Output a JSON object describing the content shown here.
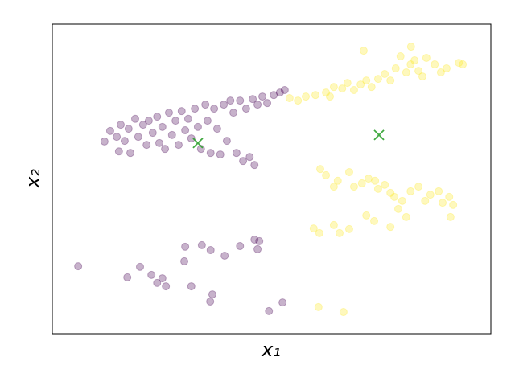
{
  "chart_data": {
    "type": "scatter",
    "xlabel": "x₁",
    "ylabel": "x₂",
    "xlim": [
      0,
      100
    ],
    "ylim": [
      0,
      100
    ],
    "series": [
      {
        "color": "#440154",
        "alpha": 0.3,
        "marker": "o",
        "x": [
          5.9,
          17.1,
          20.0,
          22.6,
          23.9,
          25.1,
          25.9,
          30.3,
          30.1,
          31.7,
          34.1,
          36.1,
          36.5,
          36.0,
          39.3,
          42.8,
          46.1,
          47.2,
          46.8,
          49.4,
          52.5,
          11.9,
          13.2,
          14.7,
          15.2,
          15.6,
          16.5,
          17.4,
          17.8,
          18.9,
          19.6,
          20.7,
          21.5,
          22.0,
          22.9,
          23.9,
          24.4,
          25.1,
          25.7,
          26.6,
          27.3,
          28.1,
          28.8,
          29.5,
          30.3,
          31.0,
          31.7,
          32.5,
          33.2,
          33.9,
          34.9,
          35.4,
          36.1,
          36.9,
          37.6,
          38.3,
          39.1,
          39.8,
          40.6,
          41.3,
          42.0,
          42.8,
          43.5,
          44.2,
          45.0,
          45.7,
          46.1,
          46.8,
          47.9,
          49.0,
          50.5,
          51.9,
          53.0
        ],
        "values": [
          21.8,
          18.2,
          21.6,
          19.0,
          16.4,
          17.9,
          15.3,
          28.1,
          23.4,
          15.3,
          28.6,
          27.0,
          12.7,
          10.4,
          25.2,
          28.3,
          30.4,
          29.9,
          27.3,
          7.3,
          10.1,
          62.1,
          65.5,
          63.6,
          58.9,
          67.5,
          62.3,
          66.2,
          58.4,
          69.4,
          63.6,
          67.5,
          61.0,
          68.8,
          64.9,
          70.1,
          61.6,
          66.8,
          59.7,
          71.4,
          64.2,
          68.8,
          61.0,
          71.9,
          65.7,
          69.4,
          63.1,
          72.7,
          66.8,
          59.7,
          74.0,
          68.8,
          58.4,
          72.7,
          66.2,
          57.9,
          74.0,
          62.3,
          75.3,
          71.4,
          58.4,
          75.3,
          55.8,
          72.7,
          57.1,
          75.8,
          54.5,
          74.0,
          76.6,
          74.5,
          77.1,
          77.9,
          78.7
        ]
      },
      {
        "color": "#fde725",
        "alpha": 0.3,
        "marker": "o",
        "x": [
          54.1,
          56.0,
          57.8,
          60.0,
          62.4,
          63.3,
          64.2,
          66.1,
          67.3,
          68.8,
          70.3,
          71.6,
          72.8,
          74.3,
          75.8,
          77.1,
          78.3,
          79.4,
          80.7,
          81.7,
          82.6,
          83.5,
          84.4,
          85.3,
          87.2,
          88.6,
          89.9,
          92.7,
          93.6,
          71.0,
          81.8,
          61.1,
          62.4,
          64.2,
          65.1,
          67.7,
          68.8,
          70.6,
          72.1,
          73.6,
          74.3,
          75.8,
          77.1,
          78.0,
          78.9,
          79.8,
          80.7,
          81.7,
          83.5,
          85.0,
          86.2,
          88.1,
          89.0,
          90.5,
          90.8,
          91.4,
          71.6,
          73.4,
          77.1,
          64.2,
          59.6,
          60.9,
          65.5,
          67.7,
          60.7,
          66.4
        ],
        "values": [
          76.1,
          75.3,
          76.6,
          77.1,
          77.9,
          76.6,
          79.7,
          79.2,
          81.0,
          78.7,
          80.5,
          81.8,
          79.7,
          82.3,
          83.9,
          81.8,
          85.7,
          89.6,
          84.4,
          87.0,
          88.3,
          84.9,
          83.1,
          89.1,
          87.0,
          84.4,
          85.7,
          87.5,
          87.0,
          91.4,
          92.7,
          53.2,
          51.2,
          47.5,
          49.4,
          52.2,
          47.5,
          48.6,
          50.1,
          49.4,
          46.8,
          48.1,
          45.5,
          44.2,
          40.3,
          42.9,
          37.7,
          46.0,
          47.5,
          42.9,
          44.9,
          46.0,
          42.3,
          44.2,
          37.7,
          41.6,
          38.2,
          36.4,
          34.5,
          35.1,
          34.0,
          32.5,
          32.5,
          33.8,
          8.6,
          7.0
        ]
      },
      {
        "color": "#2ca02c",
        "alpha": 0.9,
        "marker": "x",
        "x": [
          33.2,
          74.5
        ],
        "values": [
          61.6,
          64.2
        ]
      }
    ]
  }
}
